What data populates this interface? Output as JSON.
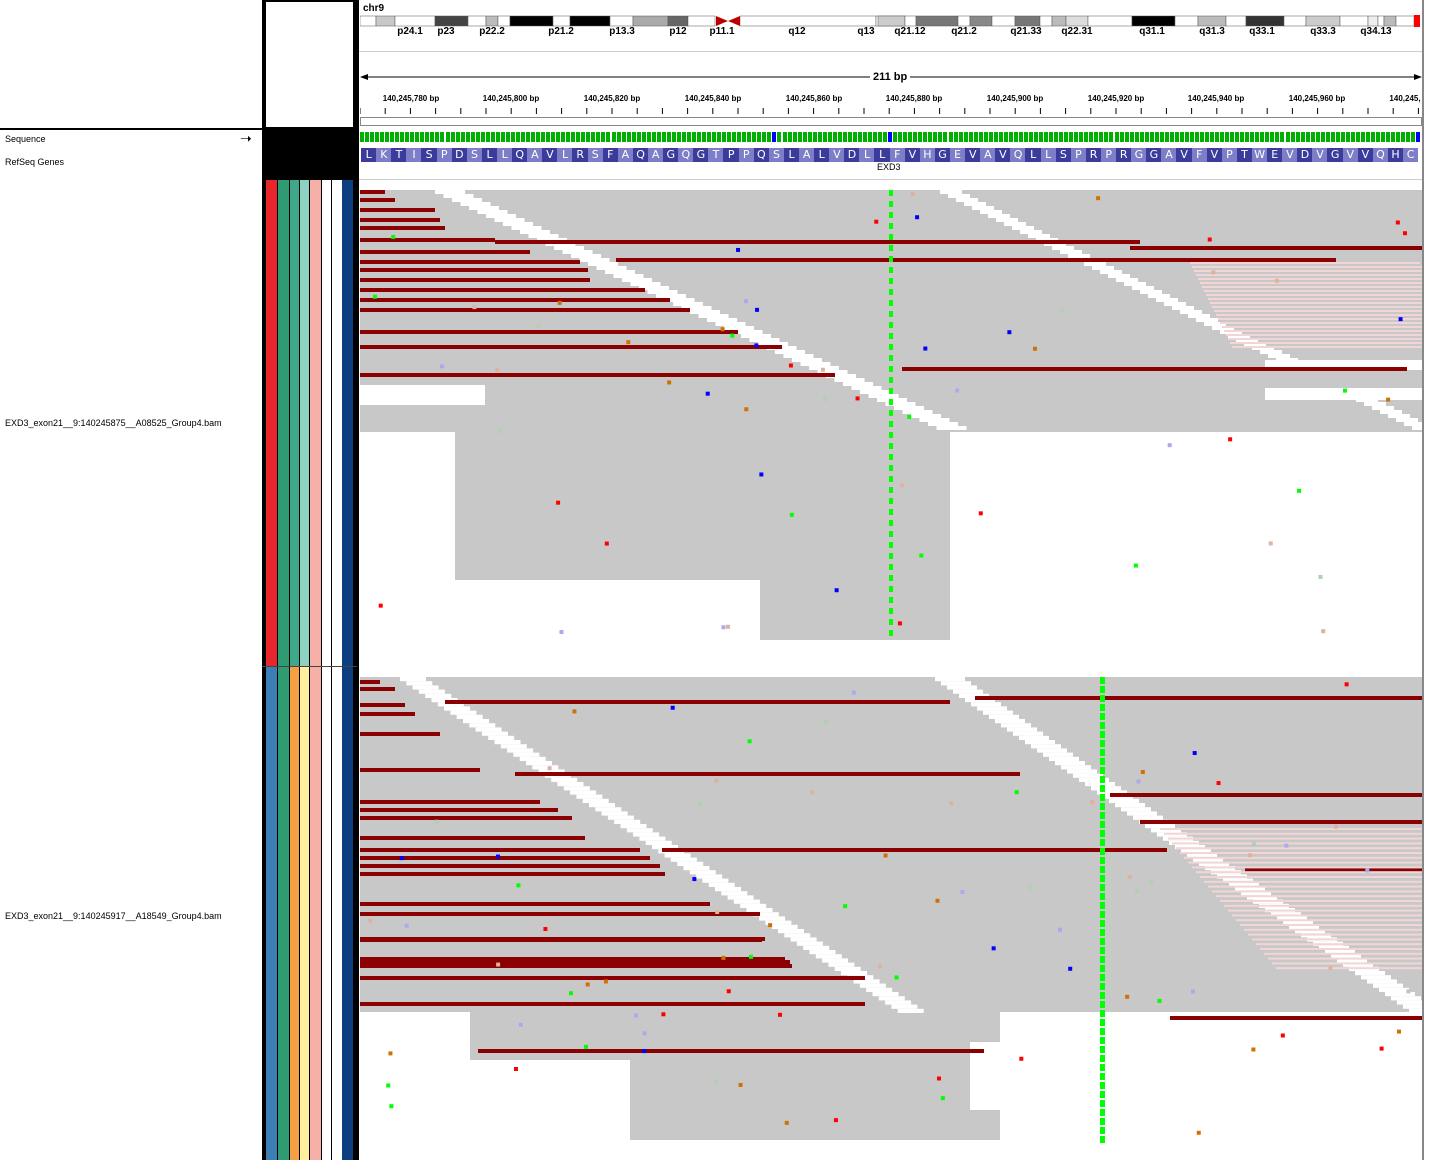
{
  "chromosome": "chr9",
  "span": "211 bp",
  "bands": [
    "p24.1",
    "p23",
    "p22.2",
    "p21.2",
    "p13.3",
    "p12",
    "p11.1",
    "q12",
    "q13",
    "q21.12",
    "q21.2",
    "q21.33",
    "q22.31",
    "q31.1",
    "q31.3",
    "q33.1",
    "q33.3",
    "q34.13"
  ],
  "ticks": [
    "140,245,780 bp",
    "140,245,800 bp",
    "140,245,820 bp",
    "140,245,840 bp",
    "140,245,860 bp",
    "140,245,880 bp",
    "140,245,900 bp",
    "140,245,920 bp",
    "140,245,940 bp",
    "140,245,960 bp",
    "140,245,"
  ],
  "tracks": {
    "sequence": "Sequence",
    "refseq": "RefSeq Genes",
    "gene": "EXD3",
    "bam1": "EXD3_exon21__9:140245875__A08525_Group4.bam",
    "bam2": "EXD3_exon21__9:140245917__A18549_Group4.bam"
  },
  "amino_acids": "LKTISPDSLLQAVLRSFAQAGQGTPPQSLALVDLLFVHGEVAVQLLSPRPRGGAVFVPTWEVDVGVVQHC",
  "colors": {
    "read": "#c8c8c8",
    "read_border": "#a0a0a0",
    "insert_large": "#8b0000",
    "mismatch_a": "#00ff00",
    "mismatch_c": "#0000ff",
    "mismatch_g": "#d17105",
    "mismatch_t": "#ff0000",
    "aa_dark": "#3b3b9b",
    "aa_light": "#7d7dc8",
    "group1": [
      "#e8262b",
      "#2e9b73",
      "#3fa88a",
      "#8fd1c0",
      "#f6b0a8",
      "#ffffff"
    ],
    "group2": [
      "#3b7fb4",
      "#2e9b73",
      "#f6a046",
      "#fff0a0",
      "#f6b0a8",
      "#ffffff"
    ],
    "sample_strip": "#0d3e80"
  },
  "icons": {
    "sequence_strand": "arrow-right-icon"
  }
}
